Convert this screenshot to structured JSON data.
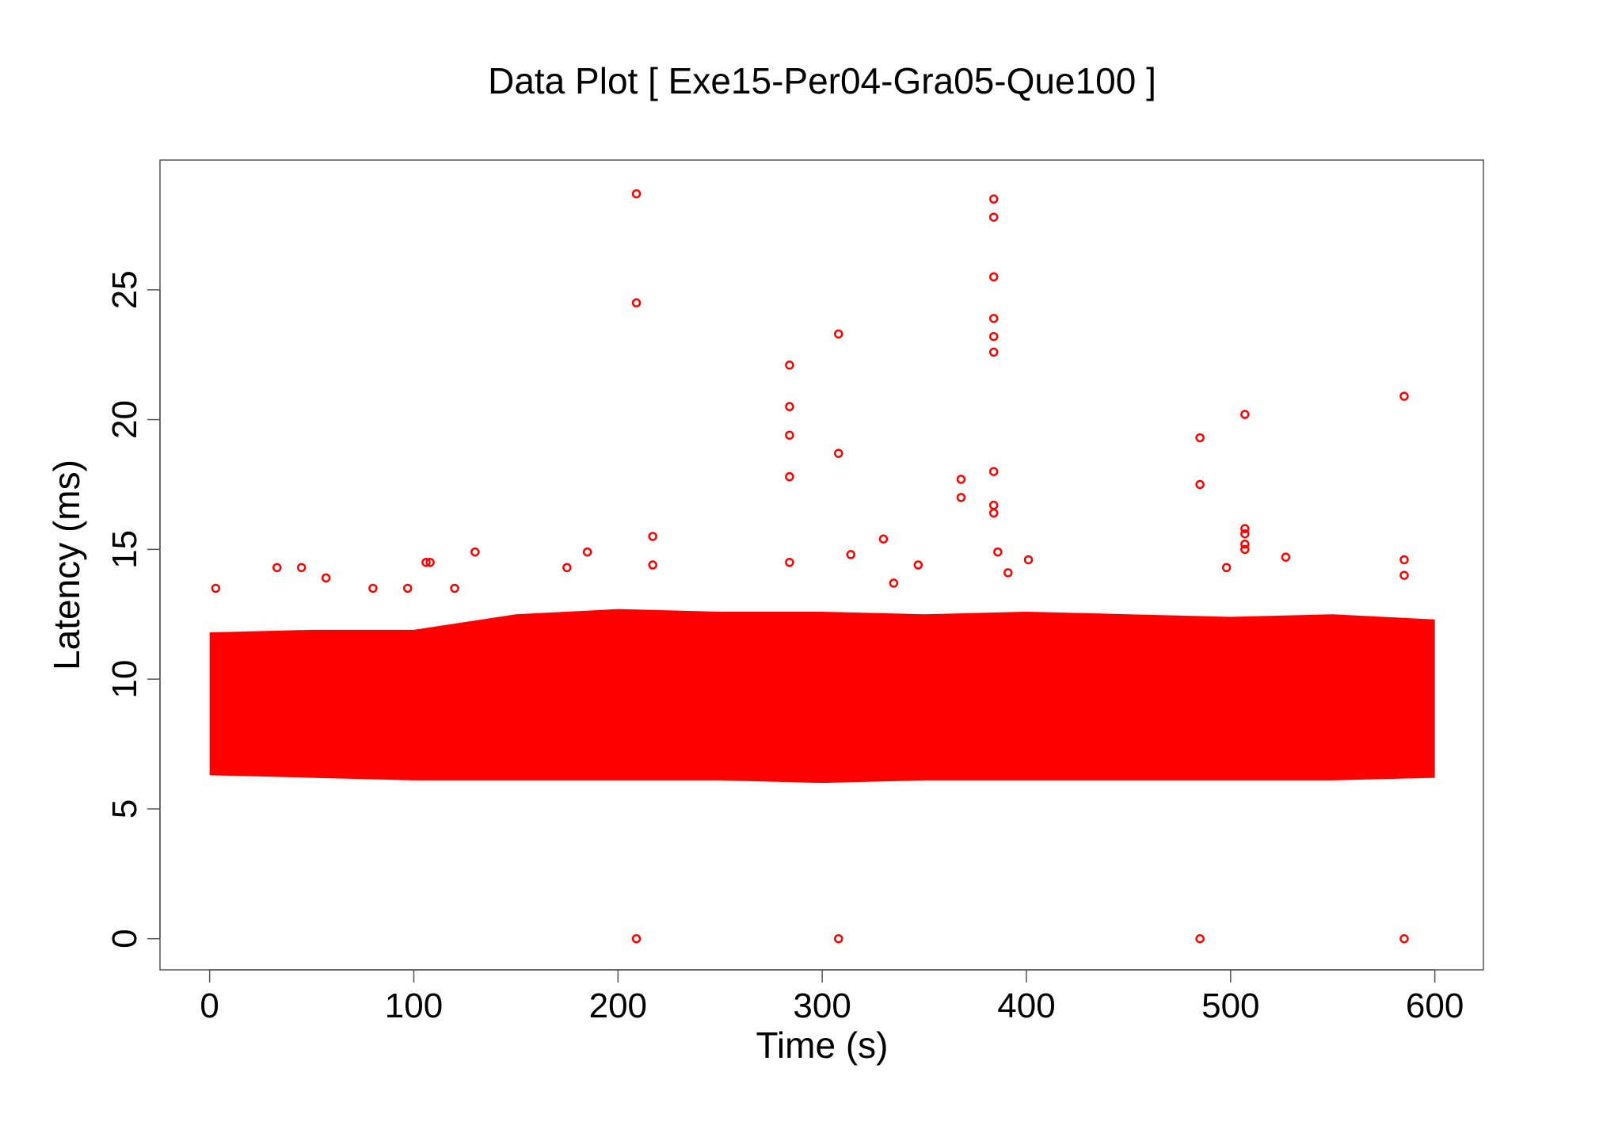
{
  "chart_data": {
    "type": "scatter",
    "title": "Data Plot [ Exe15-Per04-Gra05-Que100 ]",
    "x_label": "Time (s)",
    "y_label": "Latency (ms)",
    "color": "#ff0000",
    "x": [
      209,
      209,
      209,
      384,
      384,
      384,
      384,
      384,
      384,
      384,
      384,
      384,
      308,
      308,
      308,
      284,
      284,
      284,
      284,
      284,
      585,
      585,
      585,
      585,
      485,
      485,
      485,
      507,
      507,
      507,
      507,
      507,
      368,
      368,
      217,
      217,
      330,
      386,
      401,
      347,
      314,
      185,
      130,
      106,
      108,
      33,
      45,
      57,
      3,
      80,
      97,
      120,
      175,
      498,
      527,
      391,
      335
    ],
    "y": [
      28.7,
      24.5,
      0,
      28.5,
      27.8,
      25.5,
      23.9,
      23.2,
      22.6,
      18,
      16.7,
      16.4,
      23.3,
      18.7,
      0,
      22.1,
      20.5,
      19.4,
      17.8,
      14.5,
      20.9,
      14.6,
      14,
      0,
      19.3,
      17.5,
      0,
      20.2,
      15.8,
      15.6,
      15.2,
      15,
      17.7,
      17,
      15.5,
      14.4,
      15.4,
      14.9,
      14.6,
      14.4,
      14.8,
      14.9,
      14.9,
      14.5,
      14.5,
      14.3,
      14.3,
      13.9,
      13.5,
      13.5,
      13.5,
      13.5,
      14.3,
      14.3,
      14.7,
      14.1,
      13.7
    ],
    "band": {
      "x": [
        0,
        50,
        100,
        150,
        200,
        250,
        300,
        350,
        400,
        450,
        500,
        550,
        600
      ],
      "low": [
        6.3,
        6.2,
        6.1,
        6.1,
        6.1,
        6.1,
        6.0,
        6.1,
        6.1,
        6.1,
        6.1,
        6.1,
        6.2
      ],
      "high": [
        11.8,
        11.9,
        11.9,
        12.5,
        12.7,
        12.6,
        12.6,
        12.5,
        12.6,
        12.5,
        12.4,
        12.5,
        12.3
      ]
    },
    "xlim": [
      -24.3,
      623.8
    ],
    "ylim": [
      -1.2,
      30
    ],
    "xticks": [
      0,
      100,
      200,
      300,
      400,
      500,
      600
    ],
    "yticks": [
      0,
      5,
      10,
      15,
      20,
      25
    ]
  }
}
